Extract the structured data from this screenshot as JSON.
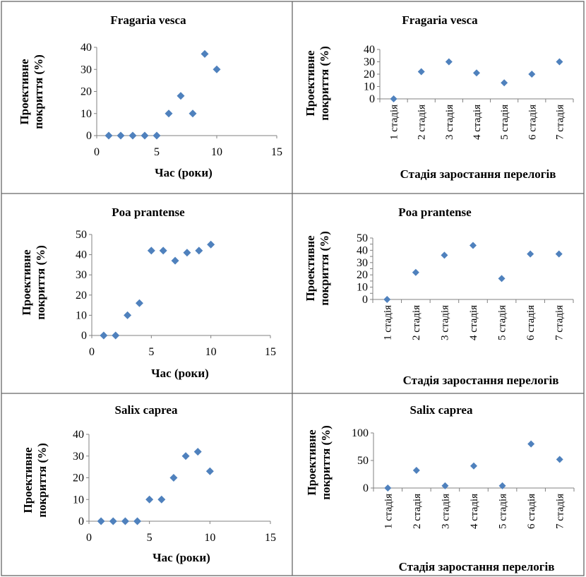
{
  "chart_data": [
    {
      "type": "scatter",
      "title": "Fragaria vesca",
      "xlabel": "Час (роки)",
      "ylabel": [
        "Проективне",
        "покриття (%)"
      ],
      "x": [
        1,
        2,
        3,
        4,
        5,
        6,
        7,
        8,
        9,
        10
      ],
      "y": [
        0,
        0,
        0,
        0,
        0,
        10,
        18,
        10,
        37,
        30
      ],
      "xlim": [
        0,
        15
      ],
      "ylim": [
        0,
        40
      ],
      "xticks": [
        0,
        5,
        10,
        15
      ],
      "yticks": [
        0,
        10,
        20,
        30,
        40
      ],
      "marker_color": "#4F81BD"
    },
    {
      "type": "scatter",
      "title": "Fragaria vesca",
      "xlabel": "Стадія заростання перелогів",
      "ylabel": [
        "Проективне",
        "покриття (%)"
      ],
      "categories": [
        "1 стадія",
        "2 стадія",
        "3 стадія",
        "4 стадія",
        "5 стадія",
        "6 стадія",
        "7 стадія"
      ],
      "values": [
        0,
        22,
        30,
        21,
        13,
        20,
        30
      ],
      "ylim": [
        0,
        40
      ],
      "yticks": [
        0,
        10,
        20,
        30,
        40
      ],
      "marker_color": "#4F81BD"
    },
    {
      "type": "scatter",
      "title": "Poa prantense",
      "xlabel": "Час (роки)",
      "ylabel": [
        "Проективне",
        "покриття (%)"
      ],
      "x": [
        1,
        2,
        3,
        4,
        5,
        6,
        7,
        8,
        9,
        10
      ],
      "y": [
        0,
        0,
        10,
        16,
        42,
        42,
        37,
        41,
        42,
        45
      ],
      "xlim": [
        0,
        15
      ],
      "ylim": [
        0,
        50
      ],
      "xticks": [
        0,
        5,
        10,
        15
      ],
      "yticks": [
        0,
        10,
        20,
        30,
        40,
        50
      ],
      "marker_color": "#4F81BD"
    },
    {
      "type": "scatter",
      "title": "Poa prantense",
      "xlabel": "Стадія заростання перелогів",
      "ylabel": [
        "Проективне",
        "покриття (%)"
      ],
      "categories": [
        "1 стадія",
        "2 стадія",
        "3 стадія",
        "4 стадія",
        "5 стадія",
        "6 стадія",
        "7 стадія"
      ],
      "values": [
        0,
        22,
        36,
        44,
        17,
        37,
        37
      ],
      "ylim": [
        0,
        50
      ],
      "yticks": [
        0,
        5,
        10,
        15,
        20,
        25,
        30,
        35,
        40,
        45,
        50
      ],
      "ytick_labels": [
        "0",
        "10",
        "20",
        "30",
        "40",
        "50"
      ],
      "marker_color": "#4F81BD"
    },
    {
      "type": "scatter",
      "title": "Salix caprea",
      "xlabel": "Час (роки)",
      "ylabel": [
        "Проективне",
        "покриття (%)"
      ],
      "x": [
        1,
        2,
        3,
        4,
        5,
        6,
        7,
        8,
        9,
        10
      ],
      "y": [
        0,
        0,
        0,
        0,
        10,
        10,
        20,
        30,
        32,
        23
      ],
      "xlim": [
        0,
        15
      ],
      "ylim": [
        0,
        40
      ],
      "xticks": [
        0,
        5,
        10,
        15
      ],
      "yticks": [
        0,
        10,
        20,
        30,
        40
      ],
      "marker_color": "#4F81BD"
    },
    {
      "type": "scatter",
      "title": "Salix caprea",
      "xlabel": "Стадія заростання перелогів",
      "ylabel": [
        "Проективне",
        "покриття (%)"
      ],
      "categories": [
        "1 стадія",
        "2 стадія",
        "3 стадія",
        "4 стадія",
        "5 стадія",
        "6 стадія",
        "7 стадія"
      ],
      "values": [
        0,
        32,
        4,
        40,
        4,
        80,
        52
      ],
      "ylim": [
        0,
        100
      ],
      "yticks": [
        0,
        50,
        100
      ],
      "marker_color": "#4F81BD"
    }
  ]
}
